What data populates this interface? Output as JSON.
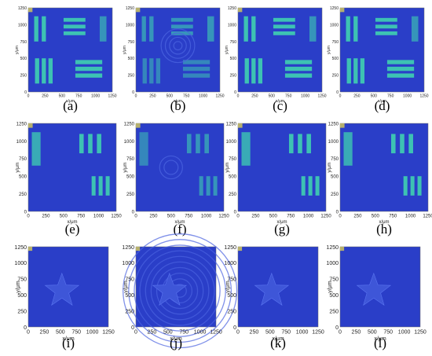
{
  "figure": {
    "panels": [
      {
        "id": "a",
        "caption": "(a)",
        "scene": "bars",
        "yticks": [
          "0",
          "250",
          "500",
          "750",
          "1000",
          "1250"
        ],
        "xticks": [
          "0",
          "250",
          "500",
          "750",
          "1000",
          "1250"
        ],
        "xlabel": "x/μm",
        "ylabel": "y/μm"
      },
      {
        "id": "b",
        "caption": "(b)",
        "scene": "bars-noisy",
        "yticks": [
          "0",
          "250",
          "500",
          "750",
          "1000",
          "1250"
        ],
        "xticks": [
          "0",
          "250",
          "500",
          "750",
          "1000",
          "1250"
        ],
        "xlabel": "x/μm",
        "ylabel": "y/μm"
      },
      {
        "id": "c",
        "caption": "(c)",
        "scene": "bars",
        "yticks": [
          "0",
          "250",
          "500",
          "750",
          "1000",
          "1250"
        ],
        "xticks": [
          "0",
          "250",
          "500",
          "750",
          "1000",
          "1250"
        ],
        "xlabel": "x/μm",
        "ylabel": "y/μm"
      },
      {
        "id": "d",
        "caption": "(d)",
        "scene": "bars",
        "yticks": [
          "0",
          "250",
          "500",
          "750",
          "1000",
          "1250"
        ],
        "xticks": [
          "0",
          "250",
          "500",
          "750",
          "1000",
          "1250"
        ],
        "xlabel": "x/μm",
        "ylabel": "y/μm"
      },
      {
        "id": "e",
        "caption": "(e)",
        "scene": "bars2",
        "yticks": [
          "0",
          "250",
          "500",
          "750",
          "1000",
          "1250"
        ],
        "xticks": [
          "0",
          "250",
          "500",
          "750",
          "1000",
          "1250"
        ],
        "xlabel": "x/μm",
        "ylabel": "y/μm"
      },
      {
        "id": "f",
        "caption": "(f)",
        "scene": "bars2-noisy",
        "yticks": [
          "0",
          "250",
          "500",
          "750",
          "1000",
          "1250"
        ],
        "xticks": [
          "0",
          "250",
          "500",
          "750",
          "1000",
          "1250"
        ],
        "xlabel": "x/μm",
        "ylabel": "y/μm"
      },
      {
        "id": "g",
        "caption": "(g)",
        "scene": "bars2",
        "yticks": [
          "0",
          "250",
          "500",
          "750",
          "1000",
          "1250"
        ],
        "xticks": [
          "0",
          "250",
          "500",
          "750",
          "1000",
          "1250"
        ],
        "xlabel": "x/μm",
        "ylabel": "y/μm"
      },
      {
        "id": "h",
        "caption": "(h)",
        "scene": "bars2",
        "yticks": [
          "0",
          "250",
          "500",
          "750",
          "1000",
          "1250"
        ],
        "xticks": [
          "0",
          "250",
          "500",
          "750",
          "1000",
          "1250"
        ],
        "xlabel": "x/μm",
        "ylabel": "y/μm"
      },
      {
        "id": "i",
        "caption": "(i)",
        "scene": "star",
        "yticks": [
          "0",
          "250",
          "500",
          "750",
          "1000",
          "1250"
        ],
        "xticks": [
          "0",
          "250",
          "500",
          "750",
          "1000",
          "1250"
        ],
        "xlabel": "x/μm",
        "ylabel": "y/μm"
      },
      {
        "id": "j",
        "caption": "(j)",
        "scene": "star-noisy",
        "yticks": [
          "0",
          "250",
          "500",
          "750",
          "1000",
          "1250"
        ],
        "xticks": [
          "0",
          "250",
          "500",
          "750",
          "1000",
          "1250"
        ],
        "xlabel": "x/μm",
        "ylabel": "y/μm"
      },
      {
        "id": "k",
        "caption": "(k)",
        "scene": "star",
        "yticks": [
          "0",
          "250",
          "500",
          "750",
          "1000",
          "1250"
        ],
        "xticks": [
          "0",
          "250",
          "500",
          "750",
          "1000",
          "1250"
        ],
        "xlabel": "x/μm",
        "ylabel": "y/μm"
      },
      {
        "id": "l",
        "caption": "(l)",
        "scene": "star",
        "yticks": [
          "0",
          "250",
          "500",
          "750",
          "1000",
          "1250"
        ],
        "xticks": [
          "0",
          "250",
          "500",
          "750",
          "1000",
          "1250"
        ],
        "xlabel": "x/μm",
        "ylabel": "y/μm"
      }
    ],
    "colors": {
      "background": "#2a3ec8",
      "bar": "#3fd0b0",
      "bar_edge": "#7ef0a0",
      "dark": "#1a2a9a",
      "star": "#3e56d8",
      "ring": "#4a63e0",
      "hot": "#f0e04a"
    }
  }
}
